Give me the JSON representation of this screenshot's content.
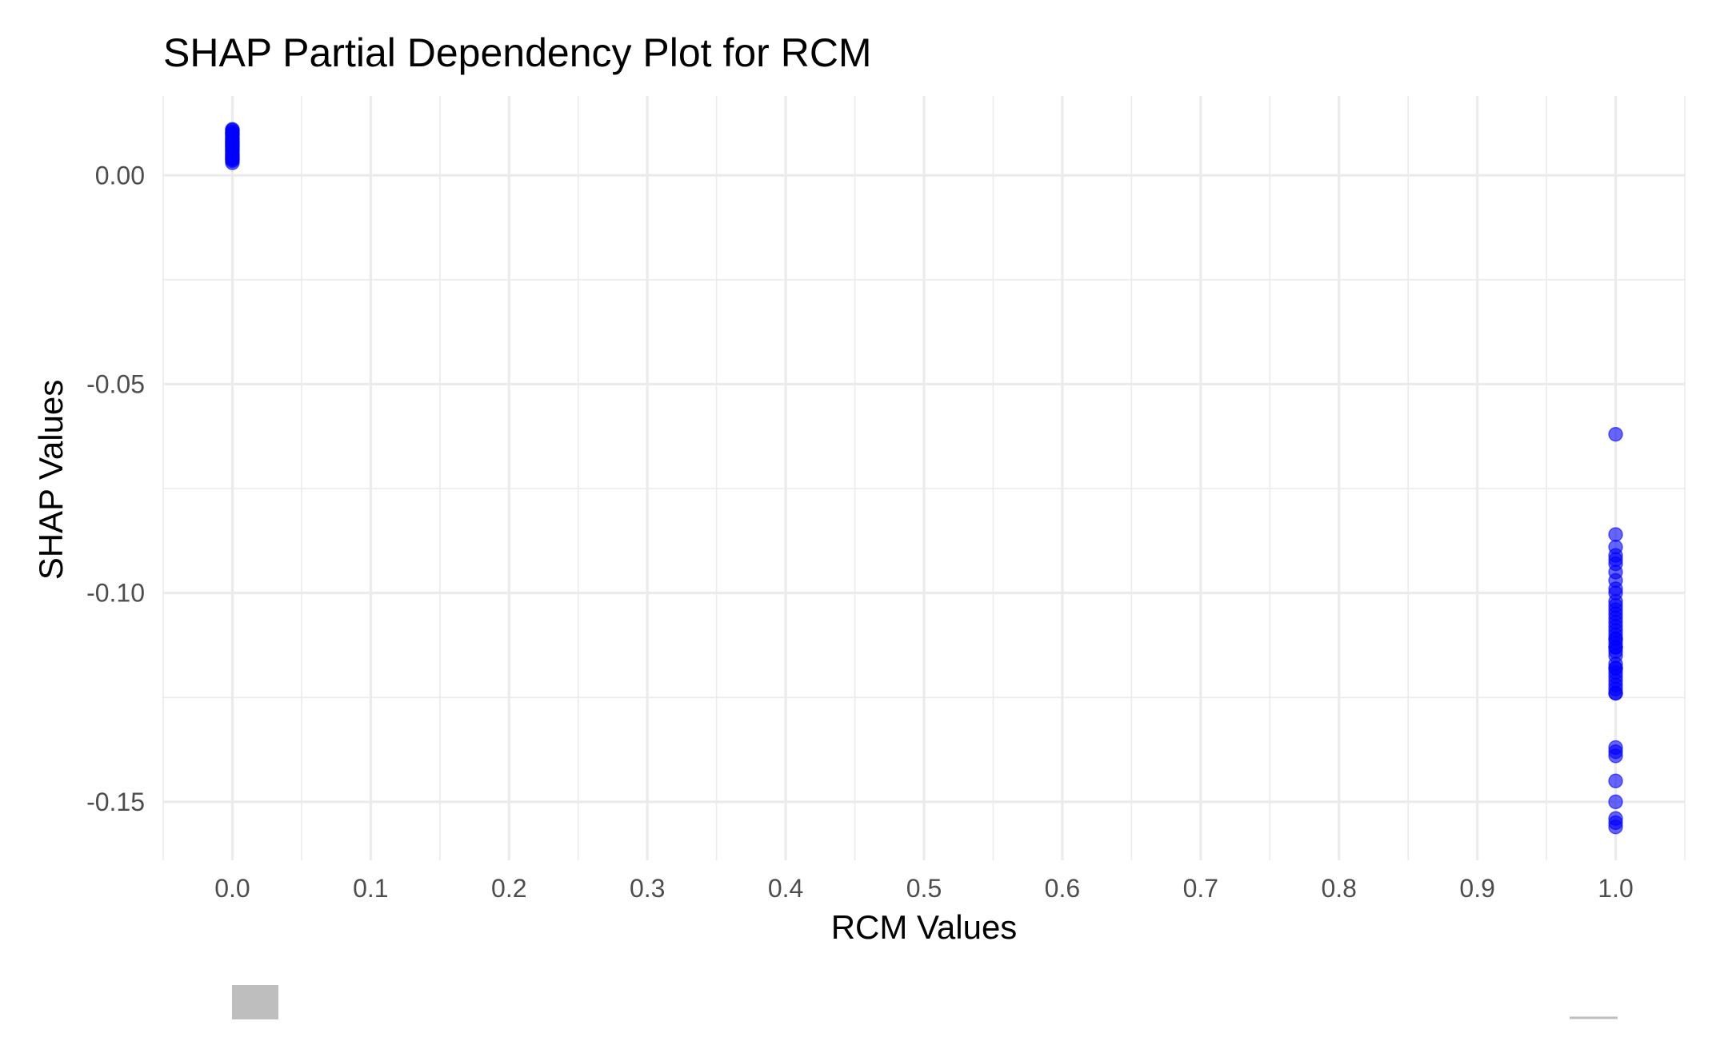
{
  "chart_data": {
    "type": "scatter",
    "title": "SHAP Partial Dependency Plot for RCM",
    "xlabel": "RCM Values",
    "ylabel": "SHAP Values",
    "xlim": [
      -0.05,
      1.05
    ],
    "ylim": [
      -0.164,
      0.019
    ],
    "x_ticks": [
      0.0,
      0.1,
      0.2,
      0.3,
      0.4,
      0.5,
      0.6,
      0.7,
      0.8,
      0.9,
      1.0
    ],
    "x_tick_labels": [
      "0.0",
      "0.1",
      "0.2",
      "0.3",
      "0.4",
      "0.5",
      "0.6",
      "0.7",
      "0.8",
      "0.9",
      "1.0"
    ],
    "y_ticks": [
      0.0,
      -0.05,
      -0.1,
      -0.15
    ],
    "y_tick_labels": [
      "0.00",
      "-0.05",
      "-0.10",
      "-0.15"
    ],
    "grid": true,
    "point_color": "#0000ff",
    "series": [
      {
        "x": [
          0,
          0,
          0,
          0,
          0,
          0,
          0,
          0,
          0,
          0,
          0,
          0,
          0,
          0,
          0,
          0,
          0,
          0,
          0,
          0,
          0,
          0,
          0,
          0,
          0,
          0,
          0,
          0,
          0,
          0,
          1,
          1,
          1,
          1,
          1,
          1,
          1,
          1,
          1,
          1,
          1,
          1,
          1,
          1,
          1,
          1,
          1,
          1,
          1,
          1,
          1,
          1,
          1,
          1,
          1,
          1,
          1,
          1,
          1,
          1,
          1,
          1,
          1,
          1,
          1,
          1,
          1,
          1,
          1,
          1,
          1,
          1,
          1,
          1
        ],
        "y": [
          0.011,
          0.0105,
          0.01,
          0.0095,
          0.009,
          0.0085,
          0.008,
          0.0075,
          0.007,
          0.0065,
          0.006,
          0.0055,
          0.005,
          0.0045,
          0.004,
          0.0035,
          0.003,
          0.0108,
          0.0098,
          0.0088,
          0.0078,
          0.0068,
          0.0058,
          0.0048,
          0.0038,
          0.0102,
          0.0082,
          0.0062,
          0.0042,
          0.0072,
          -0.062,
          -0.086,
          -0.089,
          -0.091,
          -0.092,
          -0.093,
          -0.095,
          -0.097,
          -0.099,
          -0.102,
          -0.103,
          -0.104,
          -0.106,
          -0.107,
          -0.108,
          -0.109,
          -0.11,
          -0.111,
          -0.112,
          -0.113,
          -0.114,
          -0.115,
          -0.117,
          -0.118,
          -0.119,
          -0.12,
          -0.121,
          -0.122,
          -0.123,
          -0.124,
          -0.124,
          -0.137,
          -0.138,
          -0.139,
          -0.145,
          -0.15,
          -0.154,
          -0.155,
          -0.156,
          -0.111,
          -0.105,
          -0.1,
          -0.113,
          -0.118
        ]
      }
    ]
  }
}
